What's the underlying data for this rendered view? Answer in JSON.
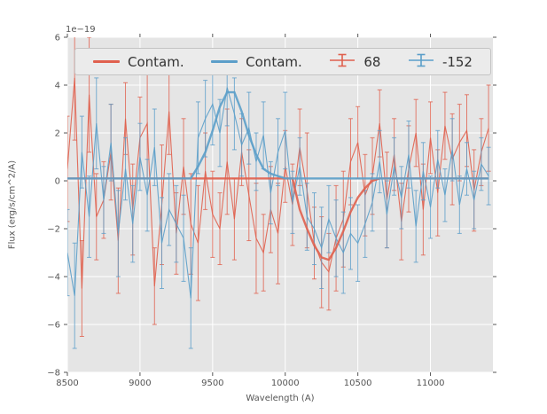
{
  "chart_data": {
    "type": "line",
    "title": "",
    "xlabel": "Wavelength (A)",
    "ylabel": "Flux (erg/s/cm^2/A)",
    "y_offset_text": "1e−19",
    "xlim": [
      8500,
      11430
    ],
    "ylim": [
      -8,
      6
    ],
    "xticks": [
      8500,
      9000,
      9500,
      10000,
      10500,
      11000
    ],
    "yticks": [
      -8,
      -6,
      -4,
      -2,
      0,
      2,
      4,
      6
    ],
    "grid": true,
    "background": "#e5e5e5",
    "grid_color": "#ffffff",
    "tick_color": "#555555",
    "legend": {
      "position": "upper center",
      "items": [
        {
          "label": "Contam.",
          "color": "#e0604e",
          "type": "line"
        },
        {
          "label": "Contam.",
          "color": "#5b9ec9",
          "type": "line"
        },
        {
          "label": "68",
          "color": "#e0604e",
          "type": "errorbar"
        },
        {
          "label": "-152",
          "color": "#5b9ec9",
          "type": "errorbar"
        }
      ]
    },
    "x": [
      8500,
      8550,
      8600,
      8650,
      8700,
      8750,
      8800,
      8850,
      8900,
      8950,
      9000,
      9050,
      9100,
      9150,
      9200,
      9250,
      9300,
      9350,
      9400,
      9450,
      9500,
      9550,
      9600,
      9650,
      9700,
      9750,
      9800,
      9850,
      9900,
      9950,
      10000,
      10050,
      10100,
      10150,
      10200,
      10250,
      10300,
      10350,
      10400,
      10450,
      10500,
      10550,
      10600,
      10650,
      10700,
      10750,
      10800,
      10850,
      10900,
      10950,
      11000,
      11050,
      11100,
      11150,
      11200,
      11250,
      11300,
      11350,
      11400
    ],
    "series": [
      {
        "name": "Contam.",
        "role": "contam-red",
        "kind": "line",
        "color": "#e0604e",
        "linewidth": 2.4,
        "values": [
          0.1,
          0.1,
          0.1,
          0.1,
          0.1,
          0.1,
          0.1,
          0.1,
          0.1,
          0.1,
          0.1,
          0.1,
          0.1,
          0.1,
          0.1,
          0.1,
          0.1,
          0.1,
          0.1,
          0.1,
          0.1,
          0.1,
          0.1,
          0.1,
          0.1,
          0.1,
          0.1,
          0.1,
          0.1,
          0.1,
          0.1,
          0.1,
          -1.2,
          -2.0,
          -2.7,
          -3.2,
          -3.3,
          -2.8,
          -2.1,
          -1.3,
          -0.7,
          -0.3,
          0.0,
          0.1,
          0.1,
          0.1,
          0.1,
          0.1,
          0.1,
          0.1,
          0.1,
          0.1,
          0.1,
          0.1,
          0.1,
          0.1,
          0.1,
          0.1,
          0.1
        ]
      },
      {
        "name": "Contam.",
        "role": "contam-blue",
        "kind": "line",
        "color": "#5b9ec9",
        "linewidth": 2.4,
        "values": [
          0.1,
          0.1,
          0.1,
          0.1,
          0.1,
          0.1,
          0.1,
          0.1,
          0.1,
          0.1,
          0.1,
          0.1,
          0.1,
          0.1,
          0.1,
          0.1,
          0.1,
          0.1,
          0.6,
          1.2,
          2.1,
          3.1,
          3.7,
          3.7,
          2.9,
          1.9,
          1.1,
          0.5,
          0.3,
          0.2,
          0.1,
          0.1,
          0.1,
          0.1,
          0.1,
          0.1,
          0.1,
          0.1,
          0.1,
          0.1,
          0.1,
          0.1,
          0.1,
          0.1,
          0.1,
          0.1,
          0.1,
          0.1,
          0.1,
          0.1,
          0.1,
          0.1,
          0.1,
          0.1,
          0.1,
          0.1,
          0.1,
          0.1,
          0.1
        ]
      },
      {
        "name": "68",
        "role": "data-red",
        "kind": "errorbar",
        "color": "#e0604e",
        "linewidth": 1.1,
        "values": [
          0.5,
          4.3,
          -4.5,
          3.6,
          -1.5,
          -0.8,
          1.2,
          -2.5,
          2.6,
          -1.2,
          1.8,
          2.4,
          -4.4,
          -1.0,
          2.9,
          -2.2,
          0.6,
          -1.8,
          -2.6,
          0.4,
          -1.4,
          -2.0,
          0.8,
          -1.6,
          1.2,
          -0.6,
          -2.4,
          -3.0,
          -1.2,
          -2.2,
          0.6,
          -1.0,
          1.4,
          -0.4,
          -2.6,
          -3.4,
          -3.8,
          -2.4,
          -1.6,
          0.8,
          1.6,
          -0.6,
          0.2,
          2.4,
          -0.8,
          1.1,
          -1.7,
          0.5,
          2.0,
          -1.2,
          1.8,
          -0.5,
          2.3,
          0.9,
          1.6,
          2.1,
          -0.4,
          1.2,
          2.2
        ],
        "errors": [
          2.2,
          2.6,
          2.0,
          2.4,
          1.8,
          1.6,
          2.0,
          2.2,
          1.5,
          1.9,
          1.7,
          2.3,
          1.6,
          2.5,
          1.8,
          1.7,
          2.0,
          2.1,
          2.4,
          1.6,
          1.8,
          1.5,
          2.2,
          1.7,
          1.4,
          1.9,
          2.3,
          1.6,
          1.8,
          2.1,
          1.5,
          1.7,
          1.6,
          2.4,
          1.5,
          1.9,
          1.6,
          2.2,
          2.0,
          1.8,
          1.5,
          1.7,
          1.6,
          1.4,
          2.0,
          1.5,
          1.6,
          1.8,
          1.4,
          1.9,
          1.5,
          1.8,
          1.4,
          1.9,
          1.6,
          1.5,
          1.7,
          1.4,
          1.8
        ]
      },
      {
        "name": "-152",
        "role": "data-blue",
        "kind": "errorbar",
        "color": "#5b9ec9",
        "linewidth": 1.1,
        "values": [
          -3.0,
          -4.8,
          1.2,
          -1.5,
          2.4,
          -0.8,
          1.6,
          -2.2,
          0.5,
          -1.8,
          1.0,
          -0.6,
          1.4,
          -2.6,
          -1.2,
          -1.8,
          -2.4,
          -4.9,
          1.8,
          2.6,
          3.2,
          2.0,
          3.9,
          2.8,
          1.5,
          2.2,
          0.8,
          1.9,
          -0.5,
          1.2,
          2.1,
          -0.9,
          0.6,
          -1.5,
          -2.0,
          -2.8,
          -1.6,
          -2.4,
          -3.0,
          -2.2,
          -2.6,
          -1.8,
          -0.9,
          0.8,
          -1.4,
          0.6,
          -0.7,
          1.1,
          -1.9,
          0.4,
          -1.1,
          0.9,
          -0.6,
          1.3,
          -1.0,
          0.5,
          -0.8,
          0.7,
          0.2
        ],
        "errors": [
          1.8,
          2.2,
          1.5,
          1.7,
          1.9,
          1.4,
          1.6,
          1.8,
          1.3,
          1.6,
          1.4,
          1.5,
          1.6,
          1.9,
          1.5,
          1.6,
          1.8,
          2.1,
          1.5,
          1.6,
          1.7,
          1.4,
          1.6,
          1.5,
          1.3,
          1.5,
          1.2,
          1.4,
          1.3,
          1.4,
          1.6,
          1.3,
          1.2,
          1.4,
          1.5,
          1.7,
          1.4,
          1.6,
          1.7,
          1.5,
          1.6,
          1.4,
          1.2,
          1.3,
          1.4,
          1.2,
          1.3,
          1.4,
          1.5,
          1.2,
          1.3,
          1.2,
          1.1,
          1.3,
          1.2,
          1.1,
          1.2,
          1.1,
          1.2
        ]
      }
    ]
  }
}
